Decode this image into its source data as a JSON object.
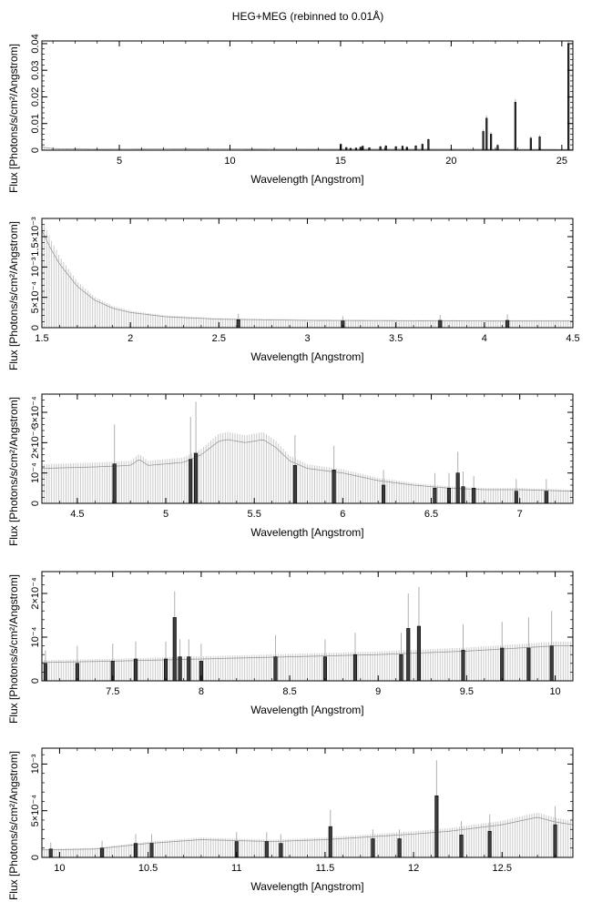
{
  "title": "HEG+MEG (rebinned to 0.01Å)",
  "chart_data": [
    {
      "type": "line",
      "xlabel": "Wavelength [Angstrom]",
      "ylabel": "Flux [Photons/s/cm²/Angstrom]",
      "xlim": [
        1.5,
        25.5
      ],
      "ylim": [
        0,
        0.041
      ],
      "xticks": [
        5,
        10,
        15,
        20,
        25
      ],
      "xtick_labels": [
        "5",
        "10",
        "15",
        "20",
        "25"
      ],
      "yticks": [
        0,
        0.01,
        0.02,
        0.03,
        0.04
      ],
      "ytick_labels": [
        "0",
        "0.01",
        "0.02",
        "0.03",
        "0.04"
      ],
      "continuum": [
        [
          1.5,
          0.0012
        ],
        [
          2,
          0.0006
        ],
        [
          4,
          0.0004
        ],
        [
          8,
          0.0005
        ],
        [
          14,
          0.0004
        ],
        [
          20,
          0.0004
        ],
        [
          25.5,
          0.0003
        ]
      ],
      "lines": [
        {
          "x": 15.01,
          "y": 0.0022,
          "err": 0.0003
        },
        {
          "x": 15.26,
          "y": 0.001,
          "err": 0.0002
        },
        {
          "x": 15.45,
          "y": 0.0007,
          "err": 0.0002
        },
        {
          "x": 15.7,
          "y": 0.0008,
          "err": 0.0002
        },
        {
          "x": 15.9,
          "y": 0.0011,
          "err": 0.0002
        },
        {
          "x": 16.0,
          "y": 0.0015,
          "err": 0.0003
        },
        {
          "x": 16.3,
          "y": 0.0009,
          "err": 0.0002
        },
        {
          "x": 16.8,
          "y": 0.0013,
          "err": 0.0003
        },
        {
          "x": 17.05,
          "y": 0.0016,
          "err": 0.0003
        },
        {
          "x": 17.5,
          "y": 0.0013,
          "err": 0.0003
        },
        {
          "x": 17.8,
          "y": 0.0015,
          "err": 0.0003
        },
        {
          "x": 18.0,
          "y": 0.0011,
          "err": 0.0003
        },
        {
          "x": 18.4,
          "y": 0.0016,
          "err": 0.0003
        },
        {
          "x": 18.7,
          "y": 0.0022,
          "err": 0.0004
        },
        {
          "x": 18.97,
          "y": 0.004,
          "err": 0.0005
        },
        {
          "x": 21.45,
          "y": 0.007,
          "err": 0.0008
        },
        {
          "x": 21.6,
          "y": 0.012,
          "err": 0.001
        },
        {
          "x": 21.8,
          "y": 0.006,
          "err": 0.0007
        },
        {
          "x": 22.1,
          "y": 0.0018,
          "err": 0.0004
        },
        {
          "x": 22.9,
          "y": 0.018,
          "err": 0.0012
        },
        {
          "x": 23.6,
          "y": 0.0045,
          "err": 0.0006
        },
        {
          "x": 24.0,
          "y": 0.005,
          "err": 0.0007
        },
        {
          "x": 25.3,
          "y": 0.04,
          "err": 0.002
        }
      ]
    },
    {
      "type": "line",
      "xlabel": "Wavelength [Angstrom]",
      "ylabel": "Flux [Photons/s/cm²/Angstrom]",
      "xlim": [
        1.5,
        4.5
      ],
      "ylim": [
        0,
        0.0018
      ],
      "xticks": [
        1.5,
        2,
        2.5,
        3,
        3.5,
        4,
        4.5
      ],
      "xtick_labels": [
        "1.5",
        "2",
        "2.5",
        "3",
        "3.5",
        "4",
        "4.5"
      ],
      "yticks": [
        0,
        0.0005,
        0.001,
        0.0015
      ],
      "ytick_labels": [
        "0",
        "5×10⁻⁴",
        "10⁻³",
        "1.5×10⁻³"
      ],
      "continuum": [
        [
          1.5,
          0.0016
        ],
        [
          1.55,
          0.0013
        ],
        [
          1.6,
          0.00105
        ],
        [
          1.7,
          0.00068
        ],
        [
          1.8,
          0.00045
        ],
        [
          1.9,
          0.00032
        ],
        [
          2.0,
          0.00025
        ],
        [
          2.2,
          0.00018
        ],
        [
          2.5,
          0.00014
        ],
        [
          3.0,
          0.00012
        ],
        [
          3.5,
          0.000115
        ],
        [
          4.0,
          0.00011
        ],
        [
          4.5,
          0.00011
        ]
      ],
      "lines": [
        {
          "x": 2.61,
          "y": 0.00013,
          "err": 0.0001
        },
        {
          "x": 3.2,
          "y": 0.00011,
          "err": 8e-05
        },
        {
          "x": 3.75,
          "y": 0.00012,
          "err": 9e-05
        },
        {
          "x": 4.13,
          "y": 0.00012,
          "err": 0.0001
        }
      ]
    },
    {
      "type": "line",
      "xlabel": "Wavelength [Angstrom]",
      "ylabel": "Flux [Photons/s/cm²/Angstrom]",
      "xlim": [
        4.3,
        7.3
      ],
      "ylim": [
        0,
        0.00036
      ],
      "xticks": [
        4.5,
        5,
        5.5,
        6,
        6.5,
        7
      ],
      "xtick_labels": [
        "4.5",
        "5",
        "5.5",
        "6",
        "6.5",
        "7"
      ],
      "yticks": [
        0,
        0.0001,
        0.0002,
        0.0003
      ],
      "ytick_labels": [
        "0",
        "10⁻⁴",
        "2×10⁻⁴",
        "3×10⁻⁴"
      ],
      "continuum": [
        [
          4.3,
          0.000115
        ],
        [
          4.6,
          0.00012
        ],
        [
          4.8,
          0.000125
        ],
        [
          4.85,
          0.000145
        ],
        [
          4.9,
          0.000125
        ],
        [
          5.1,
          0.000135
        ],
        [
          5.2,
          0.00016
        ],
        [
          5.3,
          0.000205
        ],
        [
          5.35,
          0.00021
        ],
        [
          5.45,
          0.0002
        ],
        [
          5.55,
          0.00021
        ],
        [
          5.62,
          0.000185
        ],
        [
          5.7,
          0.00014
        ],
        [
          5.8,
          0.000115
        ],
        [
          6.0,
          0.0001
        ],
        [
          6.2,
          7.5e-05
        ],
        [
          6.4,
          6e-05
        ],
        [
          6.6,
          5e-05
        ],
        [
          6.8,
          4.5e-05
        ],
        [
          7.0,
          4.5e-05
        ],
        [
          7.3,
          4e-05
        ]
      ],
      "lines": [
        {
          "x": 4.71,
          "y": 0.00013,
          "err": 0.00013
        },
        {
          "x": 5.14,
          "y": 0.000145,
          "err": 0.00014
        },
        {
          "x": 5.17,
          "y": 0.000165,
          "err": 0.00017
        },
        {
          "x": 5.73,
          "y": 0.000125,
          "err": 0.0001
        },
        {
          "x": 5.95,
          "y": 0.00011,
          "err": 8e-05
        },
        {
          "x": 6.23,
          "y": 6e-05,
          "err": 5e-05
        },
        {
          "x": 6.52,
          "y": 5e-05,
          "err": 5e-05
        },
        {
          "x": 6.6,
          "y": 5e-05,
          "err": 5e-05
        },
        {
          "x": 6.65,
          "y": 0.0001,
          "err": 7e-05
        },
        {
          "x": 6.68,
          "y": 5.5e-05,
          "err": 5e-05
        },
        {
          "x": 6.74,
          "y": 5e-05,
          "err": 4e-05
        },
        {
          "x": 6.98,
          "y": 4e-05,
          "err": 4e-05
        },
        {
          "x": 7.15,
          "y": 4e-05,
          "err": 4e-05
        }
      ]
    },
    {
      "type": "line",
      "xlabel": "Wavelength [Angstrom]",
      "ylabel": "Flux [Photons/s/cm²/Angstrom]",
      "xlim": [
        7.1,
        10.1
      ],
      "ylim": [
        0,
        0.00025
      ],
      "xticks": [
        7.5,
        8,
        8.5,
        9,
        9.5,
        10
      ],
      "xtick_labels": [
        "7.5",
        "8",
        "8.5",
        "9",
        "9.5",
        "10"
      ],
      "yticks": [
        0,
        0.0001,
        0.0002
      ],
      "ytick_labels": [
        "0",
        "10⁻⁴",
        "2×10⁻⁴"
      ],
      "continuum": [
        [
          7.1,
          4.2e-05
        ],
        [
          7.5,
          4.5e-05
        ],
        [
          8.0,
          5e-05
        ],
        [
          8.5,
          5.5e-05
        ],
        [
          9.0,
          6e-05
        ],
        [
          9.5,
          6.8e-05
        ],
        [
          10.0,
          8e-05
        ],
        [
          10.1,
          8e-05
        ]
      ],
      "lines": [
        {
          "x": 7.12,
          "y": 4e-05,
          "err": 3e-05
        },
        {
          "x": 7.3,
          "y": 4e-05,
          "err": 4e-05
        },
        {
          "x": 7.5,
          "y": 4.5e-05,
          "err": 4e-05
        },
        {
          "x": 7.63,
          "y": 5e-05,
          "err": 4e-05
        },
        {
          "x": 7.8,
          "y": 5e-05,
          "err": 4e-05
        },
        {
          "x": 7.85,
          "y": 0.000145,
          "err": 6e-05
        },
        {
          "x": 7.88,
          "y": 5.5e-05,
          "err": 4e-05
        },
        {
          "x": 7.93,
          "y": 5.5e-05,
          "err": 4e-05
        },
        {
          "x": 8.0,
          "y": 4.5e-05,
          "err": 4e-05
        },
        {
          "x": 8.42,
          "y": 5.5e-05,
          "err": 5e-05
        },
        {
          "x": 8.7,
          "y": 5.5e-05,
          "err": 4e-05
        },
        {
          "x": 8.87,
          "y": 6e-05,
          "err": 5e-05
        },
        {
          "x": 9.13,
          "y": 6e-05,
          "err": 5e-05
        },
        {
          "x": 9.17,
          "y": 0.00012,
          "err": 8e-05
        },
        {
          "x": 9.23,
          "y": 0.000125,
          "err": 9e-05
        },
        {
          "x": 9.48,
          "y": 7e-05,
          "err": 6e-05
        },
        {
          "x": 9.7,
          "y": 7.5e-05,
          "err": 6e-05
        },
        {
          "x": 9.85,
          "y": 7.5e-05,
          "err": 7e-05
        },
        {
          "x": 9.98,
          "y": 8e-05,
          "err": 8e-05
        }
      ]
    },
    {
      "type": "line",
      "xlabel": "Wavelength [Angstrom]",
      "ylabel": "Flux [Photons/s/cm²/Angstrom]",
      "xlim": [
        9.9,
        12.9
      ],
      "ylim": [
        0,
        0.00117
      ],
      "xticks": [
        10,
        10.5,
        11,
        11.5,
        12,
        12.5
      ],
      "xtick_labels": [
        "10",
        "10.5",
        "11",
        "11.5",
        "12",
        "12.5"
      ],
      "yticks": [
        0,
        0.0005,
        0.001
      ],
      "ytick_labels": [
        "0",
        "5×10⁻⁴",
        "10⁻³"
      ],
      "continuum": [
        [
          9.9,
          8e-05
        ],
        [
          10.2,
          9e-05
        ],
        [
          10.5,
          0.00015
        ],
        [
          10.8,
          0.00019
        ],
        [
          11.2,
          0.00017
        ],
        [
          11.5,
          0.00019
        ],
        [
          12.0,
          0.00025
        ],
        [
          12.2,
          0.00028
        ],
        [
          12.5,
          0.00035
        ],
        [
          12.7,
          0.00043
        ],
        [
          12.8,
          0.00038
        ],
        [
          12.9,
          0.00035
        ]
      ],
      "lines": [
        {
          "x": 9.95,
          "y": 9e-05,
          "err": 7e-05
        },
        {
          "x": 10.24,
          "y": 0.0001,
          "err": 8e-05
        },
        {
          "x": 10.43,
          "y": 0.00015,
          "err": 0.0001
        },
        {
          "x": 10.52,
          "y": 0.00015,
          "err": 0.0001
        },
        {
          "x": 11.0,
          "y": 0.00017,
          "err": 0.0001
        },
        {
          "x": 11.17,
          "y": 0.00017,
          "err": 0.0001
        },
        {
          "x": 11.25,
          "y": 0.00015,
          "err": 0.0001
        },
        {
          "x": 11.53,
          "y": 0.00033,
          "err": 0.00018
        },
        {
          "x": 11.77,
          "y": 0.0002,
          "err": 0.0001
        },
        {
          "x": 11.92,
          "y": 0.0002,
          "err": 0.0001
        },
        {
          "x": 12.13,
          "y": 0.00066,
          "err": 0.00038
        },
        {
          "x": 12.27,
          "y": 0.00024,
          "err": 0.00015
        },
        {
          "x": 12.43,
          "y": 0.00028,
          "err": 0.00018
        },
        {
          "x": 12.8,
          "y": 0.00035,
          "err": 0.0002
        }
      ]
    }
  ]
}
